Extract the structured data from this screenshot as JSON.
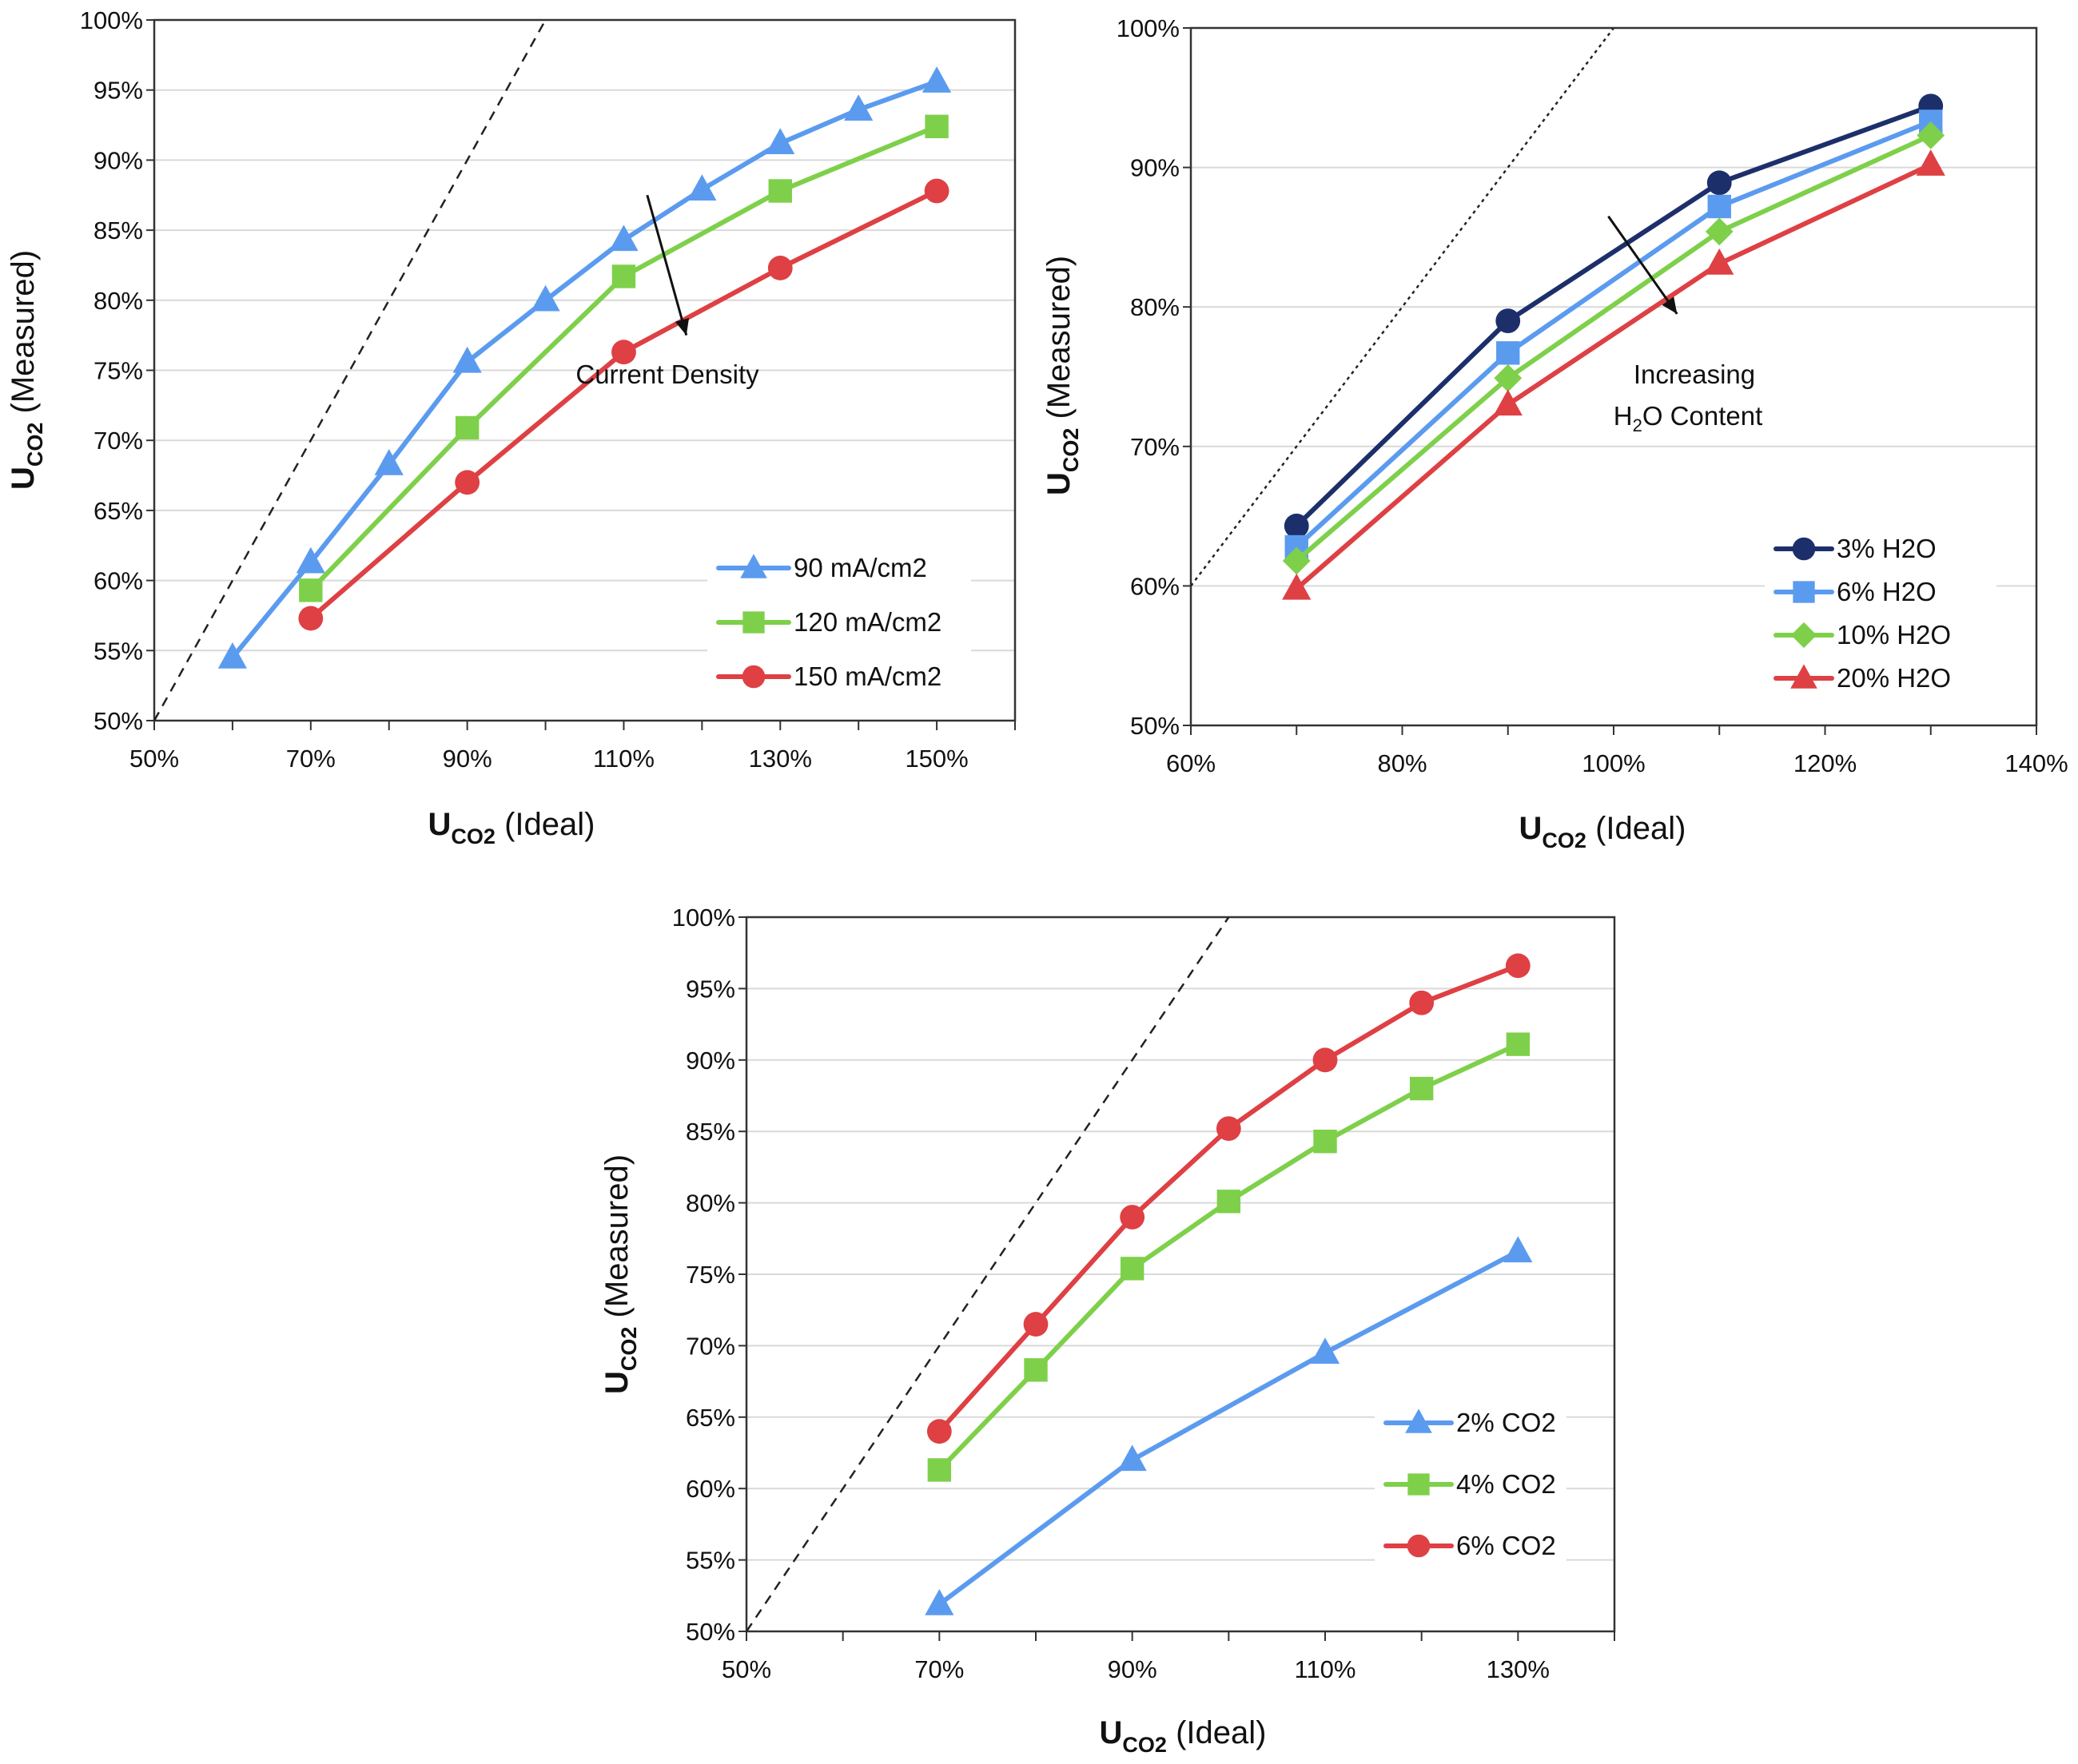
{
  "colors": {
    "blue": "#5b9bef",
    "green": "#7ed04a",
    "red": "#de4044",
    "navy": "#1d2f6b",
    "grid": "#d9d9d9",
    "axis": "#333333",
    "ideal_line": "#222222"
  },
  "chart_data": [
    {
      "id": "current-density",
      "type": "line",
      "xlabel": {
        "main": "U",
        "sub": "CO2",
        "rest": " (Ideal)"
      },
      "ylabel": {
        "main": "U",
        "sub": "CO2",
        "rest": " (Measured)"
      },
      "xlim": [
        50,
        160
      ],
      "ylim": [
        50,
        100
      ],
      "xticks": [
        50,
        70,
        90,
        110,
        130,
        150
      ],
      "xtick_labels": [
        "50%",
        "70%",
        "90%",
        "110%",
        "130%",
        "150%"
      ],
      "yticks": [
        50,
        55,
        60,
        65,
        70,
        75,
        80,
        85,
        90,
        95,
        100
      ],
      "ytick_labels": [
        "50%",
        "55%",
        "60%",
        "65%",
        "70%",
        "75%",
        "80%",
        "85%",
        "90%",
        "95%",
        "100%"
      ],
      "grid": "horizontal",
      "legend_position": "bottom-right",
      "ideal_line": {
        "x": [
          50,
          100
        ],
        "y": [
          50,
          100
        ],
        "style": "dashed"
      },
      "annotation": {
        "lines": [
          "Current Density"
        ],
        "arrow_from": [
          113,
          87.5
        ],
        "arrow_to": [
          118,
          77.5
        ]
      },
      "series": [
        {
          "name": "90 mA/cm2",
          "color": "blue",
          "marker": "triangle",
          "x": [
            60,
            70,
            80,
            90,
            100,
            110,
            120,
            130,
            140,
            150
          ],
          "y": [
            54.5,
            61.3,
            68.3,
            75.6,
            80.0,
            84.3,
            87.9,
            91.2,
            93.6,
            95.6
          ]
        },
        {
          "name": "120 mA/cm2",
          "color": "green",
          "marker": "square",
          "x": [
            70,
            90,
            110,
            130,
            150
          ],
          "y": [
            59.3,
            70.9,
            81.7,
            87.8,
            92.4
          ]
        },
        {
          "name": "150 mA/cm2",
          "color": "red",
          "marker": "circle",
          "x": [
            70,
            90,
            110,
            130,
            150
          ],
          "y": [
            57.3,
            67.0,
            76.3,
            82.3,
            87.8
          ]
        }
      ]
    },
    {
      "id": "h2o-content",
      "type": "line",
      "xlabel": {
        "main": "U",
        "sub": "CO2",
        "rest": " (Ideal)"
      },
      "ylabel": {
        "main": "U",
        "sub": "CO2",
        "rest": " (Measured)"
      },
      "xlim": [
        60,
        140
      ],
      "ylim": [
        50,
        100
      ],
      "xticks": [
        60,
        80,
        100,
        120,
        140
      ],
      "xtick_labels": [
        "60%",
        "80%",
        "100%",
        "120%",
        "140%"
      ],
      "yticks": [
        50,
        60,
        70,
        80,
        90,
        100
      ],
      "ytick_labels": [
        "50%",
        "60%",
        "70%",
        "80%",
        "90%",
        "100%"
      ],
      "grid": "horizontal",
      "legend_position": "bottom-right",
      "ideal_line": {
        "x": [
          60,
          100
        ],
        "y": [
          60,
          100
        ],
        "style": "dotted"
      },
      "annotation": {
        "lines": [
          "Increasing",
          "H2O Content"
        ],
        "arrow_from": [
          99.5,
          86.5
        ],
        "arrow_to": [
          106,
          79.5
        ]
      },
      "series": [
        {
          "name": "3% H2O",
          "color": "navy",
          "marker": "circle",
          "x": [
            70,
            90,
            110,
            130
          ],
          "y": [
            64.3,
            79.0,
            88.9,
            94.4
          ]
        },
        {
          "name": "6% H2O",
          "color": "blue",
          "marker": "square",
          "x": [
            70,
            90,
            110,
            130
          ],
          "y": [
            62.8,
            76.7,
            87.2,
            93.3
          ]
        },
        {
          "name": "10% H2O",
          "color": "green",
          "marker": "diamond",
          "x": [
            70,
            90,
            110,
            130
          ],
          "y": [
            61.8,
            74.9,
            85.4,
            92.3
          ]
        },
        {
          "name": "20% H2O",
          "color": "red",
          "marker": "triangle",
          "x": [
            70,
            90,
            110,
            130
          ],
          "y": [
            59.8,
            73.0,
            83.1,
            90.2
          ]
        }
      ]
    },
    {
      "id": "co2-content",
      "type": "line",
      "xlabel": {
        "main": "U",
        "sub": "CO2",
        "rest": " (Ideal)"
      },
      "ylabel": {
        "main": "U",
        "sub": "CO2",
        "rest": " (Measured)"
      },
      "xlim": [
        50,
        140
      ],
      "ylim": [
        50,
        100
      ],
      "xticks": [
        50,
        70,
        90,
        110,
        130
      ],
      "xtick_labels": [
        "50%",
        "70%",
        "90%",
        "110%",
        "130%"
      ],
      "yticks": [
        50,
        55,
        60,
        65,
        70,
        75,
        80,
        85,
        90,
        95,
        100
      ],
      "ytick_labels": [
        "50%",
        "55%",
        "60%",
        "65%",
        "70%",
        "75%",
        "80%",
        "85%",
        "90%",
        "95%",
        "100%"
      ],
      "grid": "horizontal",
      "legend_position": "bottom-right",
      "ideal_line": {
        "x": [
          50,
          100
        ],
        "y": [
          50,
          100
        ],
        "style": "dashed"
      },
      "annotation": null,
      "series": [
        {
          "name": "2% CO2",
          "color": "blue",
          "marker": "triangle",
          "x": [
            70,
            90,
            110,
            130
          ],
          "y": [
            51.9,
            62.0,
            69.5,
            76.6
          ]
        },
        {
          "name": "4% CO2",
          "color": "green",
          "marker": "square",
          "x": [
            70,
            80,
            90,
            100,
            110,
            120,
            130
          ],
          "y": [
            61.3,
            68.3,
            75.4,
            80.1,
            84.3,
            88.0,
            91.1
          ]
        },
        {
          "name": "6% CO2",
          "color": "red",
          "marker": "circle",
          "x": [
            70,
            80,
            90,
            100,
            110,
            120,
            130
          ],
          "y": [
            64.0,
            71.5,
            79.0,
            85.2,
            90.0,
            94.0,
            96.6
          ]
        }
      ]
    }
  ]
}
